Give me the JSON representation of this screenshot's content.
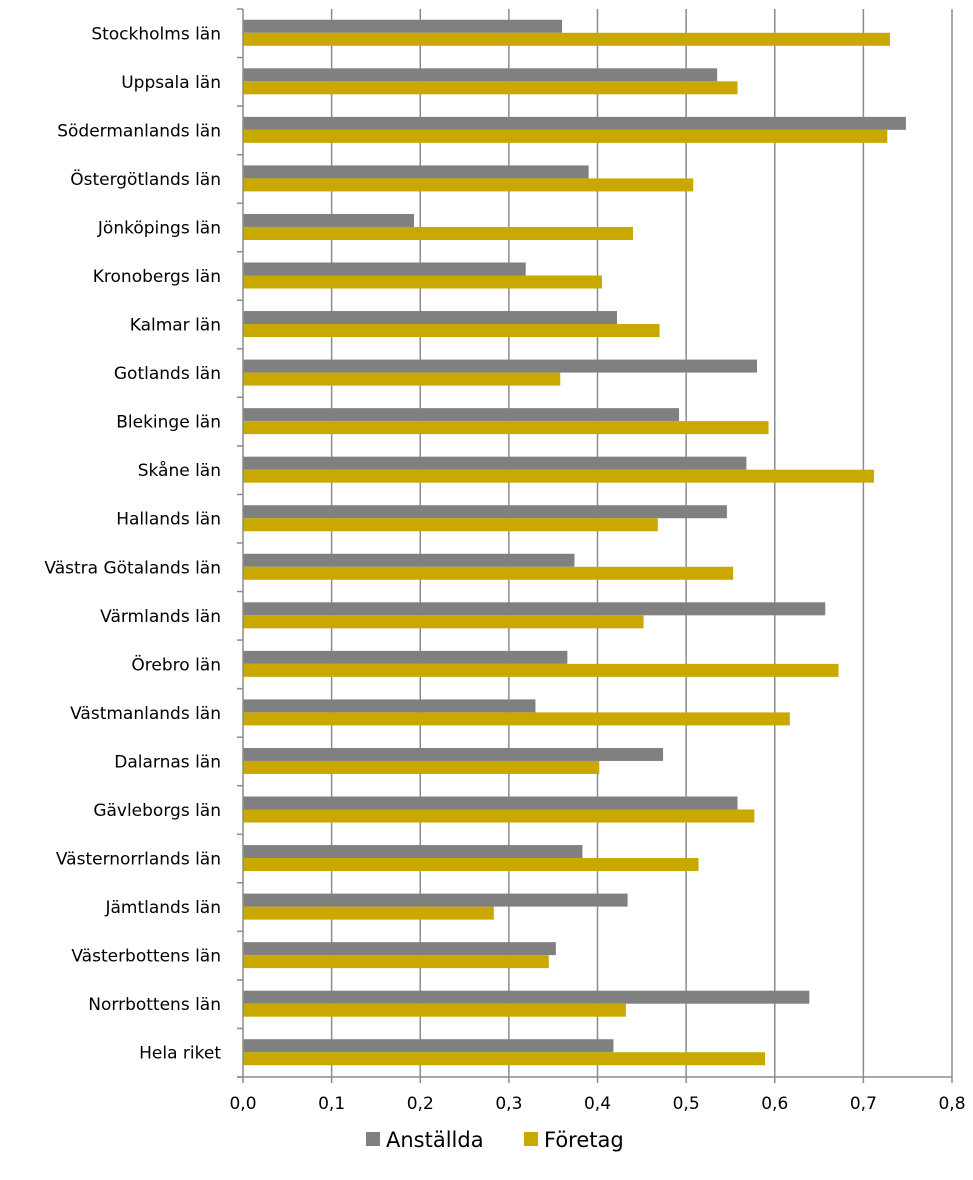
{
  "chart_data": {
    "type": "bar",
    "orientation": "horizontal",
    "categories": [
      "Stockholms län",
      "Uppsala län",
      "Södermanlands län",
      "Östergötlands län",
      "Jönköpings län",
      "Kronobergs län",
      "Kalmar län",
      "Gotlands län",
      "Blekinge län",
      "Skåne län",
      "Hallands län",
      "Västra Götalands län",
      "Värmlands län",
      "Örebro län",
      "Västmanlands län",
      "Dalarnas län",
      "Gävleborgs län",
      "Västernorrlands län",
      "Jämtlands län",
      "Västerbottens län",
      "Norrbottens län",
      "Hela riket"
    ],
    "series": [
      {
        "name": "Anställda",
        "color": "#808080",
        "values": [
          0.36,
          0.535,
          0.748,
          0.39,
          0.193,
          0.319,
          0.422,
          0.58,
          0.492,
          0.568,
          0.546,
          0.374,
          0.657,
          0.366,
          0.33,
          0.474,
          0.558,
          0.383,
          0.434,
          0.353,
          0.639,
          0.418
        ]
      },
      {
        "name": "Företag",
        "color": "#C9A800",
        "values": [
          0.73,
          0.558,
          0.727,
          0.508,
          0.44,
          0.405,
          0.47,
          0.358,
          0.593,
          0.712,
          0.468,
          0.553,
          0.452,
          0.672,
          0.617,
          0.402,
          0.577,
          0.514,
          0.283,
          0.345,
          0.432,
          0.589
        ]
      }
    ],
    "xlim": [
      0,
      0.8
    ],
    "xticks": [
      "0,0",
      "0,1",
      "0,2",
      "0,3",
      "0,4",
      "0,5",
      "0,6",
      "0,7",
      "0,8"
    ],
    "grid": "vertical",
    "legend_position": "bottom"
  }
}
